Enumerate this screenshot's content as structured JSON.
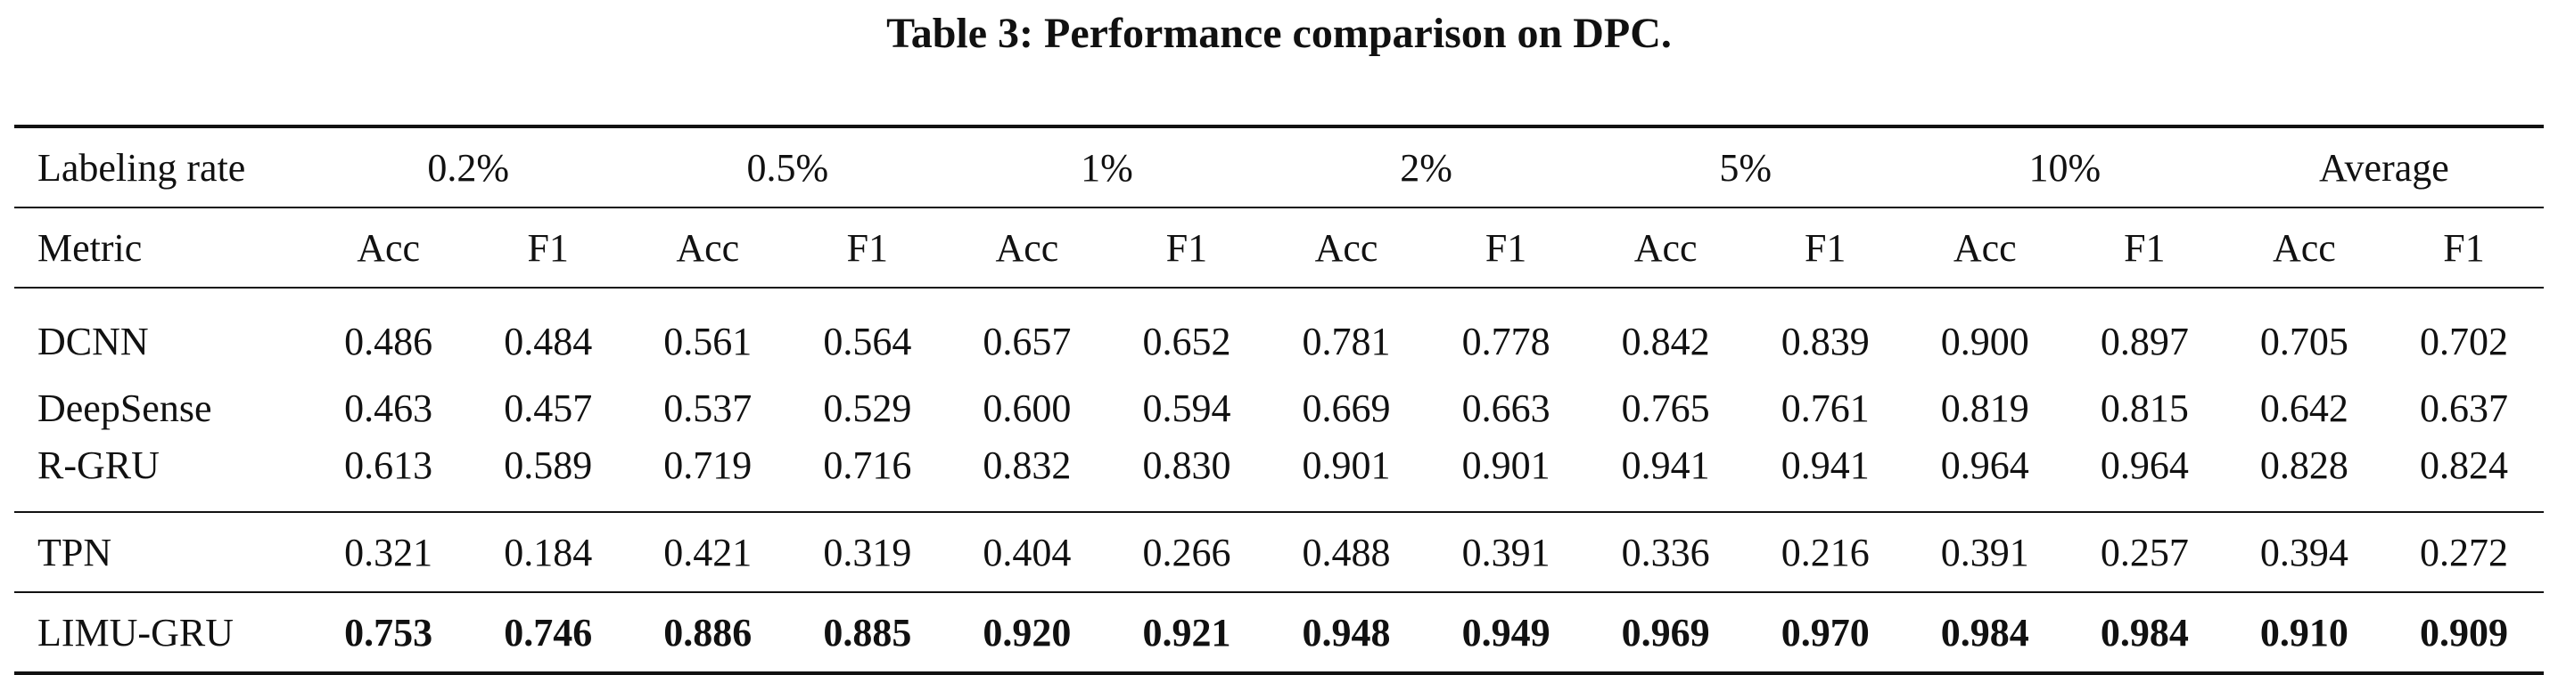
{
  "caption": "Table 3: Performance comparison on DPC.",
  "table": {
    "labeling_rate_header": "Labeling rate",
    "labeling_rates": [
      "0.2%",
      "0.5%",
      "1%",
      "2%",
      "5%",
      "10%",
      "Average"
    ],
    "metric_header": "Metric",
    "metrics": [
      "Acc",
      "F1",
      "Acc",
      "F1",
      "Acc",
      "F1",
      "Acc",
      "F1",
      "Acc",
      "F1",
      "Acc",
      "F1",
      "Acc",
      "F1"
    ],
    "rows": [
      {
        "name": "DCNN",
        "values": [
          "0.486",
          "0.484",
          "0.561",
          "0.564",
          "0.657",
          "0.652",
          "0.781",
          "0.778",
          "0.842",
          "0.839",
          "0.900",
          "0.897",
          "0.705",
          "0.702"
        ]
      },
      {
        "name": "DeepSense",
        "values": [
          "0.463",
          "0.457",
          "0.537",
          "0.529",
          "0.600",
          "0.594",
          "0.669",
          "0.663",
          "0.765",
          "0.761",
          "0.819",
          "0.815",
          "0.642",
          "0.637"
        ]
      },
      {
        "name": "R-GRU",
        "values": [
          "0.613",
          "0.589",
          "0.719",
          "0.716",
          "0.832",
          "0.830",
          "0.901",
          "0.901",
          "0.941",
          "0.941",
          "0.964",
          "0.964",
          "0.828",
          "0.824"
        ]
      },
      {
        "name": "TPN",
        "values": [
          "0.321",
          "0.184",
          "0.421",
          "0.319",
          "0.404",
          "0.266",
          "0.488",
          "0.391",
          "0.336",
          "0.216",
          "0.391",
          "0.257",
          "0.394",
          "0.272"
        ]
      },
      {
        "name": "LIMU-GRU",
        "values": [
          "0.753",
          "0.746",
          "0.886",
          "0.885",
          "0.920",
          "0.921",
          "0.948",
          "0.949",
          "0.969",
          "0.970",
          "0.984",
          "0.984",
          "0.910",
          "0.909"
        ]
      }
    ]
  }
}
